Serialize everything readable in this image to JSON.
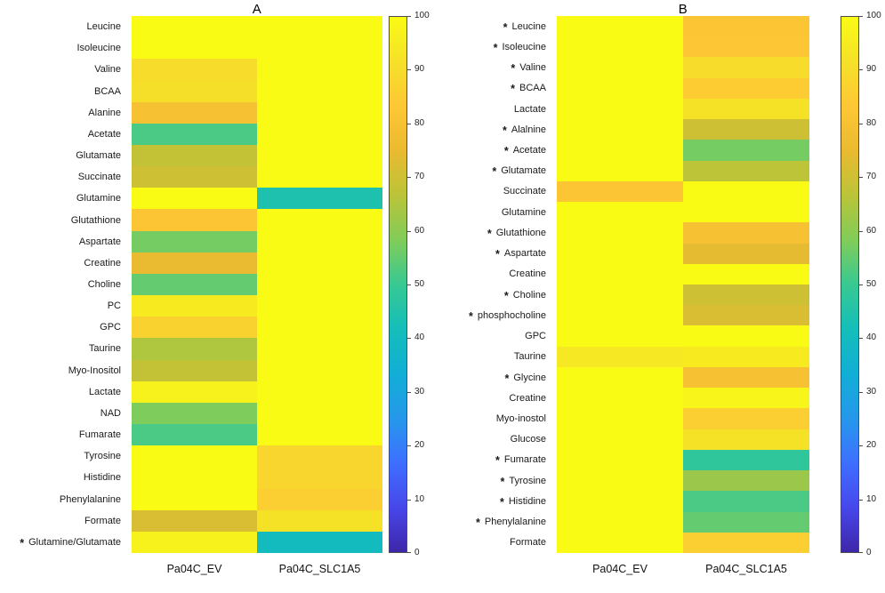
{
  "figure": {
    "background": "#ffffff"
  },
  "colors": {
    "colormap_stops": [
      "#3E26A8",
      "#4747EB",
      "#3E6FFF",
      "#2598EB",
      "#11AED6",
      "#14BEB9",
      "#38C992",
      "#81CC59",
      "#BBC438",
      "#EABA30",
      "#FEC735",
      "#F5E128",
      "#F9FB15"
    ],
    "tick_color": "#262626",
    "label_color": "#1a1a1a"
  },
  "chart_data": [
    {
      "type": "heatmap",
      "title": "A",
      "columns": [
        "Pa04C_EV",
        "Pa04C_SLC1A5"
      ],
      "vmin": 0,
      "vmax": 100,
      "colormap": "parula",
      "legend_position": "right",
      "colorbar_ticks": [
        0,
        10,
        20,
        30,
        40,
        50,
        60,
        70,
        80,
        90,
        100
      ],
      "rows": [
        {
          "label": "Leucine",
          "star": false,
          "values": [
            100,
            100
          ]
        },
        {
          "label": "Isoleucine",
          "star": false,
          "values": [
            100,
            100
          ]
        },
        {
          "label": "Valine",
          "star": false,
          "values": [
            90,
            100
          ]
        },
        {
          "label": "BCAA",
          "star": false,
          "values": [
            91,
            100
          ]
        },
        {
          "label": "Alanine",
          "star": false,
          "values": [
            80,
            100
          ]
        },
        {
          "label": "Acetate",
          "star": false,
          "values": [
            52,
            100
          ]
        },
        {
          "label": "Glutamate",
          "star": false,
          "values": [
            68,
            100
          ]
        },
        {
          "label": "Succinate",
          "star": false,
          "values": [
            70,
            100
          ]
        },
        {
          "label": "Glutamine",
          "star": false,
          "values": [
            100,
            44
          ]
        },
        {
          "label": "Glutathione",
          "star": false,
          "values": [
            82,
            100
          ]
        },
        {
          "label": "Aspartate",
          "star": false,
          "values": [
            57,
            100
          ]
        },
        {
          "label": "Creatine",
          "star": false,
          "values": [
            75,
            100
          ]
        },
        {
          "label": "Choline",
          "star": false,
          "values": [
            55,
            100
          ]
        },
        {
          "label": "PC",
          "star": false,
          "values": [
            95,
            100
          ]
        },
        {
          "label": "GPC",
          "star": false,
          "values": [
            87,
            100
          ]
        },
        {
          "label": "Taurine",
          "star": false,
          "values": [
            65,
            100
          ]
        },
        {
          "label": "Myo-Inositol",
          "star": false,
          "values": [
            68,
            100
          ]
        },
        {
          "label": "Lactate",
          "star": false,
          "values": [
            97,
            100
          ]
        },
        {
          "label": "NAD",
          "star": false,
          "values": [
            58,
            100
          ]
        },
        {
          "label": "Fumarate",
          "star": false,
          "values": [
            52,
            100
          ]
        },
        {
          "label": "Tyrosine",
          "star": false,
          "values": [
            100,
            88
          ]
        },
        {
          "label": "Histidine",
          "star": false,
          "values": [
            100,
            88
          ]
        },
        {
          "label": "Phenylalanine",
          "star": false,
          "values": [
            100,
            86
          ]
        },
        {
          "label": "Formate",
          "star": false,
          "values": [
            72,
            92
          ]
        },
        {
          "label": "Glutamine/Glutamate",
          "star": true,
          "values": [
            97,
            40
          ]
        }
      ]
    },
    {
      "type": "heatmap",
      "title": "B",
      "columns": [
        "Pa04C_EV",
        "Pa04C_SLC1A5"
      ],
      "vmin": 0,
      "vmax": 100,
      "colormap": "parula",
      "legend_position": "right",
      "colorbar_ticks": [
        0,
        10,
        20,
        30,
        40,
        50,
        60,
        70,
        80,
        90,
        100
      ],
      "rows": [
        {
          "label": "Leucine",
          "star": true,
          "values": [
            100,
            82
          ]
        },
        {
          "label": "Isoleucine",
          "star": true,
          "values": [
            100,
            83
          ]
        },
        {
          "label": "Valine",
          "star": true,
          "values": [
            100,
            90
          ]
        },
        {
          "label": "BCAA",
          "star": true,
          "values": [
            100,
            85
          ]
        },
        {
          "label": "Lactate",
          "star": false,
          "values": [
            100,
            92
          ]
        },
        {
          "label": "Alalnine",
          "star": true,
          "values": [
            100,
            70
          ]
        },
        {
          "label": "Acetate",
          "star": true,
          "values": [
            100,
            57
          ]
        },
        {
          "label": "Glutamate",
          "star": true,
          "values": [
            100,
            67
          ]
        },
        {
          "label": "Succinate",
          "star": false,
          "values": [
            82,
            100
          ]
        },
        {
          "label": "Glutamine",
          "star": false,
          "values": [
            100,
            100
          ]
        },
        {
          "label": "Glutathione",
          "star": true,
          "values": [
            100,
            80
          ]
        },
        {
          "label": "Aspartate",
          "star": true,
          "values": [
            100,
            74
          ]
        },
        {
          "label": "Creatine",
          "star": false,
          "values": [
            100,
            100
          ]
        },
        {
          "label": "Choline",
          "star": true,
          "values": [
            100,
            70
          ]
        },
        {
          "label": "phosphocholine",
          "star": true,
          "values": [
            100,
            72
          ]
        },
        {
          "label": "GPC",
          "star": false,
          "values": [
            100,
            100
          ]
        },
        {
          "label": "Taurine",
          "star": false,
          "values": [
            94,
            95
          ]
        },
        {
          "label": "Glycine",
          "star": true,
          "values": [
            100,
            80
          ]
        },
        {
          "label": "Creatine",
          "star": false,
          "values": [
            100,
            98
          ]
        },
        {
          "label": "Myo-inostol",
          "star": false,
          "values": [
            100,
            86
          ]
        },
        {
          "label": "Glucose",
          "star": false,
          "values": [
            100,
            92
          ]
        },
        {
          "label": "Fumarate",
          "star": true,
          "values": [
            100,
            48
          ]
        },
        {
          "label": "Tyrosine",
          "star": true,
          "values": [
            100,
            62
          ]
        },
        {
          "label": "Histidine",
          "star": true,
          "values": [
            100,
            52
          ]
        },
        {
          "label": "Phenylalanine",
          "star": true,
          "values": [
            100,
            55
          ]
        },
        {
          "label": "Formate",
          "star": false,
          "values": [
            100,
            86
          ]
        }
      ]
    }
  ]
}
